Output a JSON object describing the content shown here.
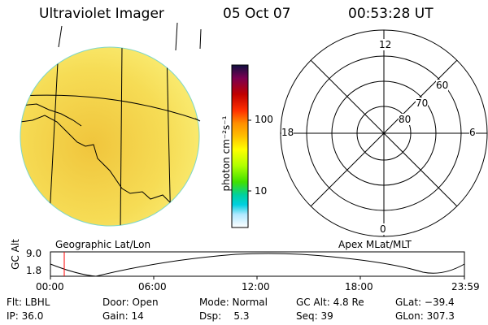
{
  "header": {
    "title": "Ultraviolet Imager",
    "date": "05 Oct 07",
    "time": "00:53:28 UT"
  },
  "colorbar": {
    "unit_label": "photon cm⁻²s⁻¹",
    "ticks": [
      "100",
      "10"
    ],
    "colors": [
      "#101040",
      "#7a0050",
      "#c00000",
      "#ff3000",
      "#ff9000",
      "#ffc000",
      "#ffff00",
      "#b0ff00",
      "#40e000",
      "#00d0a0",
      "#00d0e0",
      "#b0e8ff",
      "#ffffff"
    ]
  },
  "left_panel": {
    "label": "Geographic Lat/Lon",
    "disk_color": "#f4d34a",
    "grid_color": "#000000"
  },
  "right_panel": {
    "label": "Apex MLat/MLT",
    "mlt_labels": {
      "top": "12",
      "bottom": "0",
      "left": "18",
      "right": "6"
    },
    "lat_labels": [
      "60",
      "70",
      "80"
    ]
  },
  "timeline": {
    "y_label": "GC Alt",
    "y_ticks": [
      "9.0",
      "1.8"
    ],
    "x_ticks": [
      "00:00",
      "06:00",
      "12:00",
      "18:00",
      "23:59"
    ],
    "marker_time": "00:53",
    "marker_color": "#ff0000"
  },
  "footer": {
    "flt": "Flt: LBHL",
    "ip": "IP: 36.0",
    "door": "Door: Open",
    "gain": "Gain: 14",
    "mode": "Mode: Normal",
    "dsp": "Dsp:    5.3",
    "gc_alt": "GC Alt: 4.8 Re",
    "seq": "Seq: 39",
    "glat": "GLat: −39.4",
    "glon": "GLon: 307.3"
  }
}
